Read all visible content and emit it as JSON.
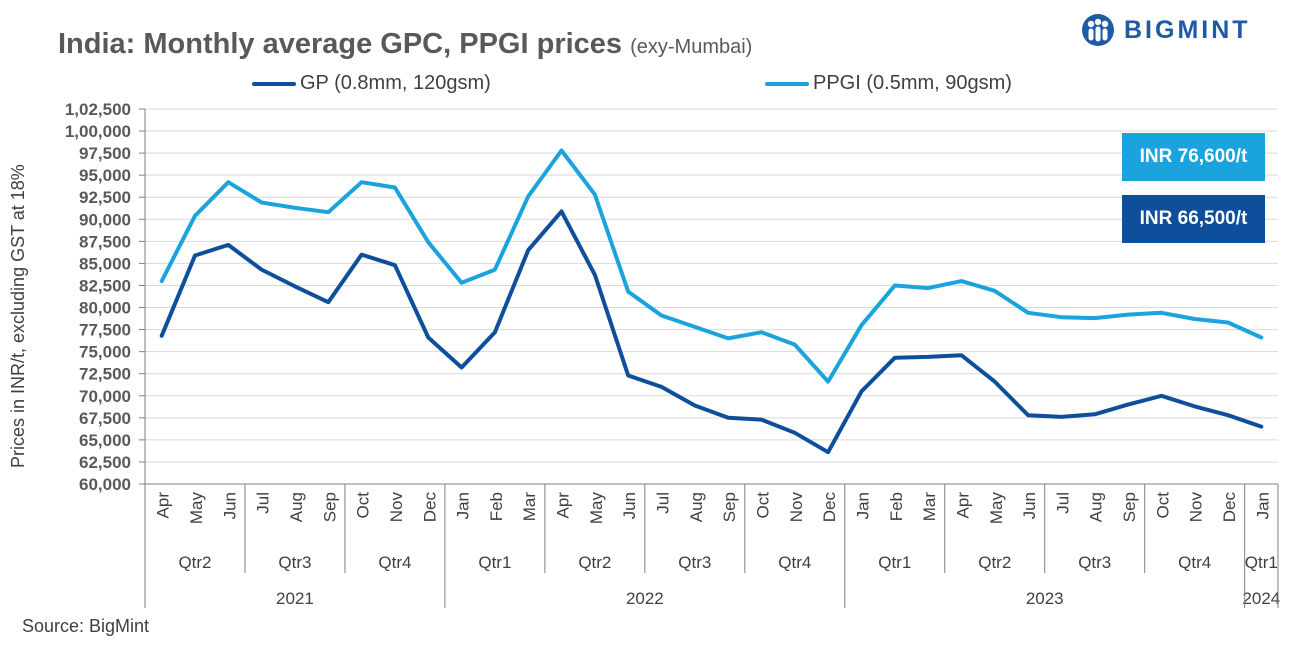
{
  "header": {
    "title": "India: Monthly average GPC, PPGI prices",
    "subtitle": "(exy-Mumbai)",
    "logo_text": "BIGMINT"
  },
  "colors": {
    "gp": "#0d4f9a",
    "ppgi": "#1ba3dd",
    "logo": "#1f5aa6"
  },
  "chart_data": {
    "type": "line",
    "title": "India: Monthly average GPC, PPGI prices (exy-Mumbai)",
    "ylabel": "Prices in INR/t, excluding GST at 18%",
    "xlabel": "",
    "ylim": [
      60000,
      102500
    ],
    "ytick_step": 2500,
    "ytick_labels": [
      "60,000",
      "62,500",
      "65,000",
      "67,500",
      "70,000",
      "72,500",
      "75,000",
      "77,500",
      "80,000",
      "82,500",
      "85,000",
      "87,500",
      "90,000",
      "92,500",
      "95,000",
      "97,500",
      "1,00,000",
      "1,02,500"
    ],
    "grid": true,
    "legend_position": "top",
    "categories": [
      "Apr",
      "May",
      "Jun",
      "Jul",
      "Aug",
      "Sep",
      "Oct",
      "Nov",
      "Dec",
      "Jan",
      "Feb",
      "Mar",
      "Apr",
      "May",
      "Jun",
      "Jul",
      "Aug",
      "Sep",
      "Oct",
      "Nov",
      "Dec",
      "Jan",
      "Feb",
      "Mar",
      "Apr",
      "May",
      "Jun",
      "Jul",
      "Aug",
      "Sep",
      "Oct",
      "Nov",
      "Dec",
      "Jan"
    ],
    "quarters": [
      {
        "label": "Qtr2",
        "start": 0,
        "end": 2
      },
      {
        "label": "Qtr3",
        "start": 3,
        "end": 5
      },
      {
        "label": "Qtr4",
        "start": 6,
        "end": 8
      },
      {
        "label": "Qtr1",
        "start": 9,
        "end": 11
      },
      {
        "label": "Qtr2",
        "start": 12,
        "end": 14
      },
      {
        "label": "Qtr3",
        "start": 15,
        "end": 17
      },
      {
        "label": "Qtr4",
        "start": 18,
        "end": 20
      },
      {
        "label": "Qtr1",
        "start": 21,
        "end": 23
      },
      {
        "label": "Qtr2",
        "start": 24,
        "end": 26
      },
      {
        "label": "Qtr3",
        "start": 27,
        "end": 29
      },
      {
        "label": "Qtr4",
        "start": 30,
        "end": 32
      },
      {
        "label": "Qtr1",
        "start": 33,
        "end": 33
      }
    ],
    "years": [
      {
        "label": "2021",
        "start": 0,
        "end": 8
      },
      {
        "label": "2022",
        "start": 9,
        "end": 20
      },
      {
        "label": "2023",
        "start": 21,
        "end": 32
      },
      {
        "label": "2024",
        "start": 33,
        "end": 33
      }
    ],
    "series": [
      {
        "name": "GP (0.8mm, 120gsm)",
        "color": "#0d4f9a",
        "values": [
          76800,
          85900,
          87100,
          84300,
          82400,
          80600,
          86000,
          84800,
          76600,
          73200,
          77200,
          86500,
          90900,
          83700,
          72300,
          71000,
          68900,
          67500,
          67300,
          65800,
          63600,
          70500,
          74300,
          74400,
          74600,
          71600,
          67800,
          67600,
          67900,
          69000,
          70000,
          68800,
          67800,
          66500
        ]
      },
      {
        "name": "PPGI (0.5mm, 90gsm)",
        "color": "#1ba3dd",
        "values": [
          83000,
          90400,
          94200,
          91900,
          91300,
          90800,
          94200,
          93600,
          87400,
          82800,
          84300,
          92600,
          97800,
          92800,
          81800,
          79100,
          77800,
          76500,
          77200,
          75800,
          71600,
          78000,
          82500,
          82200,
          83000,
          81900,
          79400,
          78900,
          78800,
          79200,
          79400,
          78700,
          78300,
          76600
        ]
      }
    ],
    "annotations": [
      {
        "text": "INR 76,600/t",
        "series": "PPGI (0.5mm, 90gsm)"
      },
      {
        "text": "INR 66,500/t",
        "series": "GP (0.8mm, 120gsm)"
      }
    ]
  },
  "source": "Source: BigMint"
}
